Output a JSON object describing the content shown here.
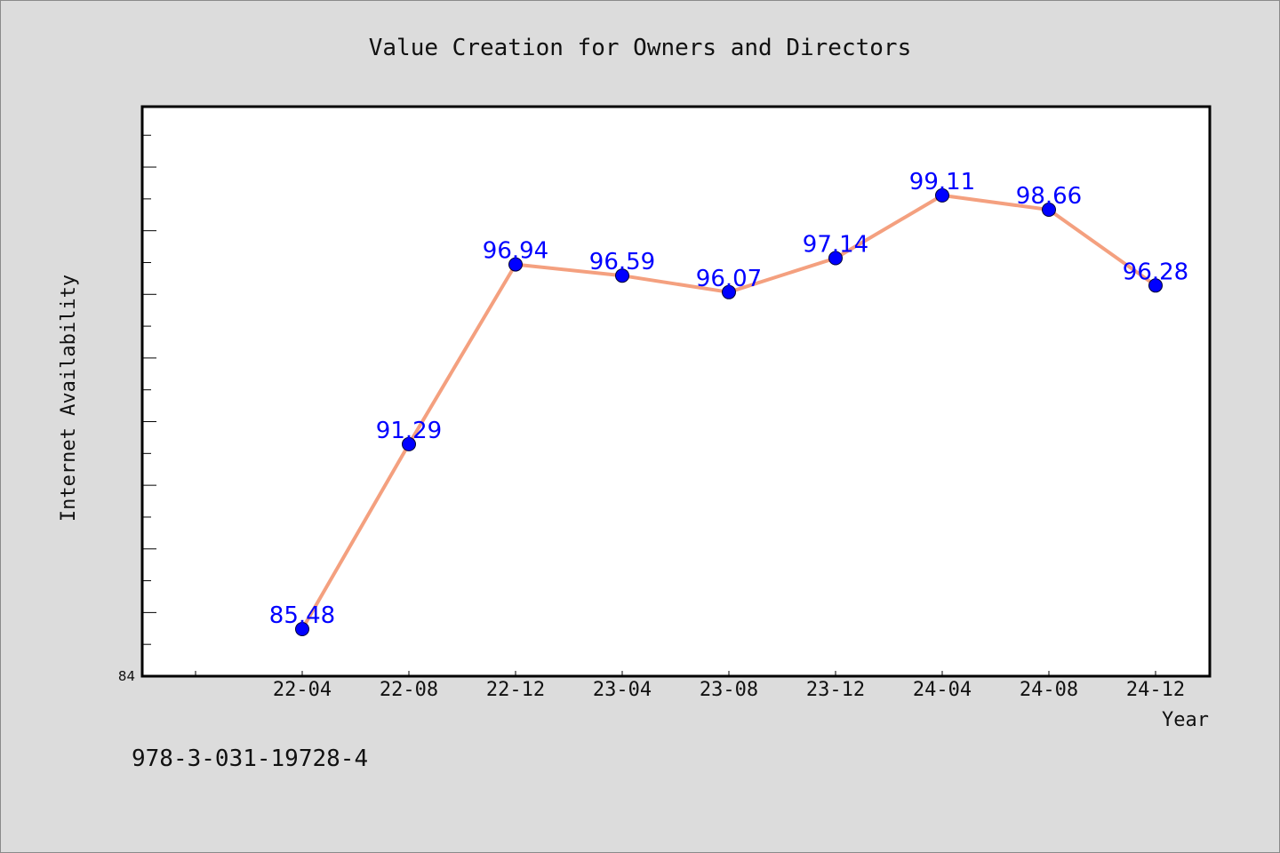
{
  "chart_data": {
    "type": "line",
    "title": "Value Creation for Owners and Directors",
    "xlabel": "Year",
    "ylabel": "Internet Availability",
    "categories": [
      "22-04",
      "22-08",
      "22-12",
      "23-04",
      "23-08",
      "23-12",
      "24-04",
      "24-08",
      "24-12"
    ],
    "series": [
      {
        "values": [
          85.48,
          91.29,
          96.94,
          96.59,
          96.07,
          97.14,
          99.11,
          98.66,
          96.28
        ]
      }
    ],
    "data_labels": [
      "85.48",
      "91.29",
      "96.94",
      "96.59",
      "96.07",
      "97.14",
      "99.11",
      "98.66",
      "96.28"
    ],
    "ylim": [
      84,
      101.9
    ],
    "ytick_labels": [
      "84"
    ],
    "grid": false,
    "line_color": "#f4a07f",
    "marker_color": "#0000ff",
    "label_color": "#0000ff"
  },
  "footer": {
    "isbn": "978-3-031-19728-4"
  }
}
